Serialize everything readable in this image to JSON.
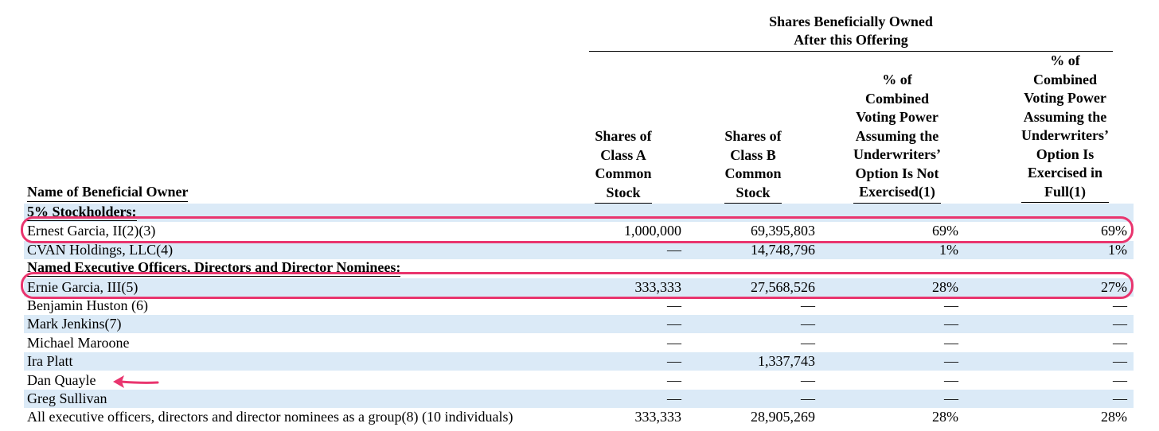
{
  "header": {
    "group_title_line1": "Shares Beneficially Owned",
    "group_title_line2": "After this Offering",
    "name_column": "Name of Beneficial Owner",
    "col_class_a": [
      "Shares of",
      "Class A",
      "Common",
      "Stock"
    ],
    "col_class_b": [
      "Shares of",
      "Class B",
      "Common",
      "Stock"
    ],
    "col_pct_not_exercised": [
      "% of",
      "Combined",
      "Voting Power",
      "Assuming the",
      "Underwriters’",
      "Option Is Not",
      "Exercised(1)"
    ],
    "col_pct_exercised": [
      "% of",
      "Combined",
      "Voting Power",
      "Assuming the",
      "Underwriters’",
      "Option Is",
      "Exercised in",
      "Full(1)"
    ]
  },
  "rows": [
    {
      "type": "section",
      "label": "5% Stockholders:"
    },
    {
      "type": "data",
      "name": "Ernest Garcia, II(2)(3)",
      "class_a": "1,000,000",
      "class_b": "69,395,803",
      "pct_not": "69%",
      "pct_full": "69%"
    },
    {
      "type": "data",
      "name": "CVAN Holdings, LLC(4)",
      "class_a": "—",
      "class_b": "14,748,796",
      "pct_not": "1%",
      "pct_full": "1%"
    },
    {
      "type": "section",
      "label": "Named Executive Officers, Directors and Director Nominees:"
    },
    {
      "type": "data",
      "name": "Ernie Garcia, III(5)",
      "class_a": "333,333",
      "class_b": "27,568,526",
      "pct_not": "28%",
      "pct_full": "27%"
    },
    {
      "type": "data",
      "name": "Benjamin Huston (6)",
      "class_a": "—",
      "class_b": "—",
      "pct_not": "—",
      "pct_full": "—"
    },
    {
      "type": "data",
      "name": "Mark Jenkins(7)",
      "class_a": "—",
      "class_b": "—",
      "pct_not": "—",
      "pct_full": "—"
    },
    {
      "type": "data",
      "name": "Michael Maroone",
      "class_a": "—",
      "class_b": "—",
      "pct_not": "—",
      "pct_full": "—"
    },
    {
      "type": "data",
      "name": "Ira Platt",
      "class_a": "—",
      "class_b": "1,337,743",
      "pct_not": "—",
      "pct_full": "—"
    },
    {
      "type": "data",
      "name": "Dan Quayle",
      "class_a": "—",
      "class_b": "—",
      "pct_not": "—",
      "pct_full": "—"
    },
    {
      "type": "data",
      "name": "Greg Sullivan",
      "class_a": "—",
      "class_b": "—",
      "pct_not": "—",
      "pct_full": "—"
    },
    {
      "type": "data",
      "name": "All executive officers, directors and director nominees as a group(8) (10 individuals)",
      "class_a": "333,333",
      "class_b": "28,905,269",
      "pct_not": "28%",
      "pct_full": "28%"
    }
  ],
  "annotations": {
    "highlight_color": "#e9356e",
    "row_shade_color": "#dbeaf7"
  }
}
